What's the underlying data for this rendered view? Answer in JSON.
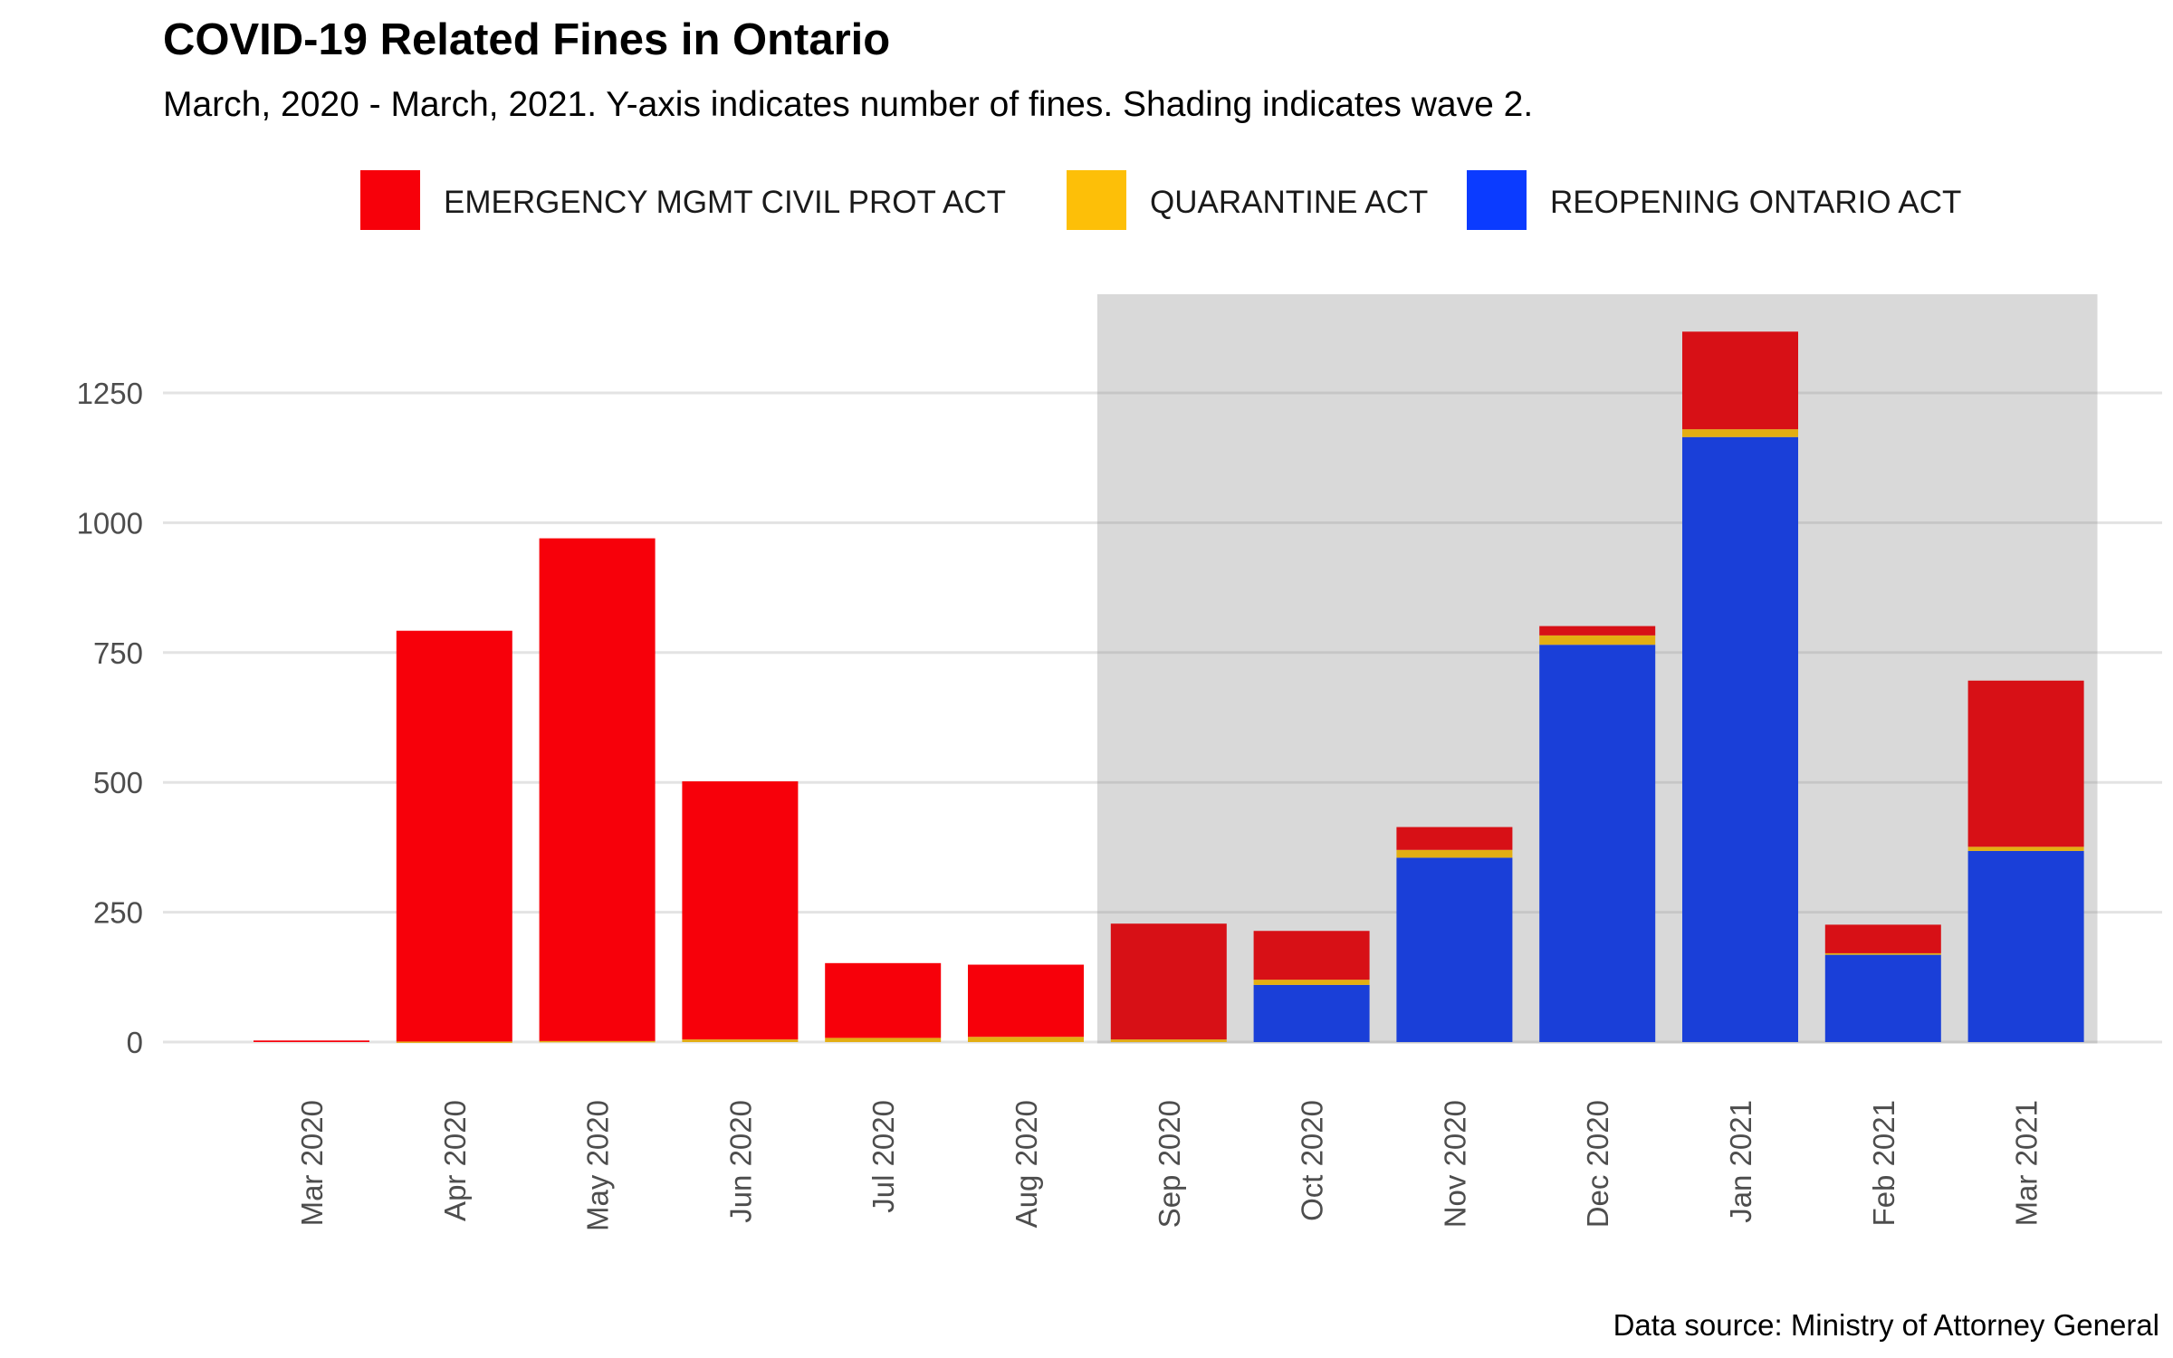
{
  "chart_data": {
    "type": "bar",
    "stacked": true,
    "title": "COVID-19 Related Fines in Ontario",
    "subtitle": "March, 2020 - March, 2021. Y-axis indicates number of fines. Shading indicates wave 2.",
    "caption": "Data source: Ministry of Attorney General",
    "xlabel": "",
    "ylabel": "",
    "ylim": [
      -70,
      1440
    ],
    "yticks": [
      0,
      250,
      500,
      750,
      1000,
      1250
    ],
    "grid": true,
    "legend_position": "top",
    "shaded_region": {
      "from": "Sep 2020",
      "to": "Mar 2021"
    },
    "categories": [
      "Mar 2020",
      "Apr 2020",
      "May 2020",
      "Jun 2020",
      "Jul 2020",
      "Aug 2020",
      "Sep 2020",
      "Oct 2020",
      "Nov 2020",
      "Dec 2020",
      "Jan 2021",
      "Feb 2021",
      "Mar 2021"
    ],
    "series": [
      {
        "name": "REOPENING ONTARIO ACT",
        "color": "#1a3fd8",
        "legend_color": "#0b3bff",
        "values": [
          0,
          0,
          0,
          0,
          0,
          0,
          0,
          110,
          355,
          765,
          1165,
          168,
          368
        ]
      },
      {
        "name": "QUARANTINE ACT",
        "color": "#e3ae12",
        "legend_color": "#fdbf08",
        "values": [
          0,
          1,
          2,
          5,
          8,
          10,
          5,
          10,
          15,
          18,
          15,
          3,
          8
        ]
      },
      {
        "name": "EMERGENCY MGMT CIVIL PROT ACT",
        "color": "#d71016",
        "legend_color": "#f7000a",
        "values": [
          3,
          791,
          968,
          497,
          144,
          139,
          223,
          94,
          44,
          18,
          188,
          55,
          320
        ]
      }
    ],
    "legend_order": [
      "EMERGENCY MGMT CIVIL PROT ACT",
      "QUARANTINE ACT",
      "REOPENING ONTARIO ACT"
    ],
    "colors": {
      "pre_wave_bar": "#f7000a",
      "shading": "#d9d9d9"
    }
  }
}
